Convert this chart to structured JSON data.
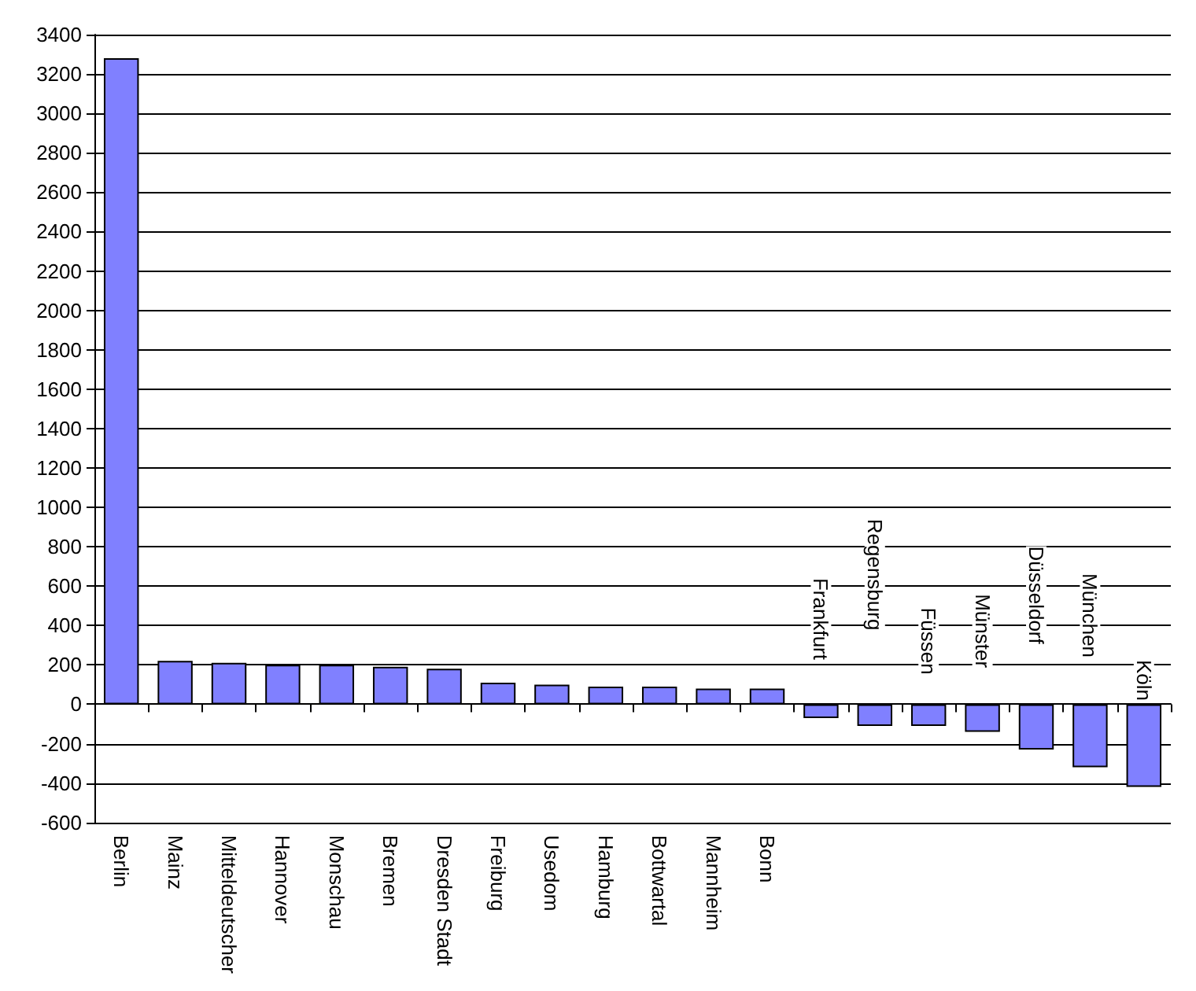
{
  "chart_data": {
    "type": "bar",
    "categories": [
      "Berlin",
      "Mainz",
      "Mitteldeutscher",
      "Hannover",
      "Monschau",
      "Bremen",
      "Dresden Stadt",
      "Freiburg",
      "Usedom",
      "Hamburg",
      "Bottwartal",
      "Mannheim",
      "Bonn",
      "Frankfurt",
      "Regensburg",
      "Füssen",
      "Münster",
      "Düsseldorf",
      "München",
      "Köln"
    ],
    "values": [
      3280,
      220,
      210,
      200,
      200,
      190,
      180,
      110,
      100,
      90,
      90,
      80,
      80,
      -70,
      -110,
      -110,
      -140,
      -230,
      -320,
      -420
    ],
    "color": "#8080ff",
    "ylim": [
      -600,
      3400
    ],
    "yticks": [
      -600,
      -400,
      -200,
      0,
      200,
      400,
      600,
      800,
      1000,
      1200,
      1400,
      1600,
      1800,
      2000,
      2200,
      2400,
      2600,
      2800,
      3000,
      3200,
      3400
    ],
    "grid": "y"
  }
}
